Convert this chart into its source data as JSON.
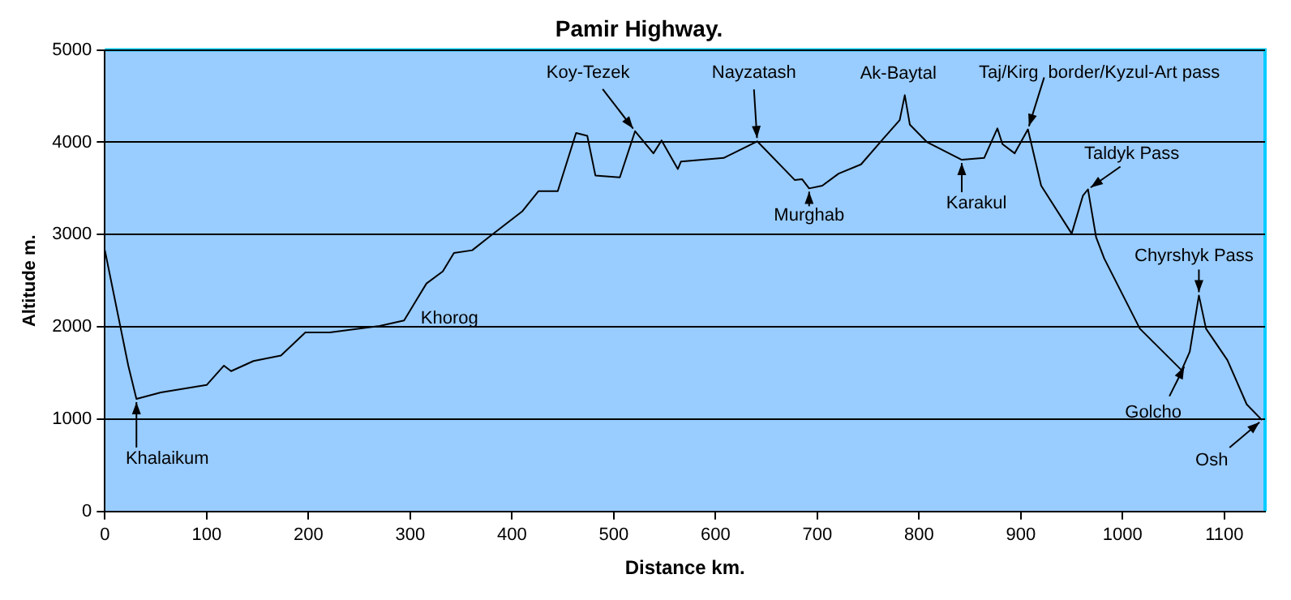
{
  "chart_data": {
    "type": "line",
    "title": "Pamir Highway.",
    "xlabel": "Distance km.",
    "ylabel": "Altitude m.",
    "x": [
      0,
      23,
      31,
      55,
      100,
      117,
      124,
      146,
      173,
      197,
      221,
      270,
      294,
      316,
      332,
      343,
      361,
      377,
      410,
      426,
      445,
      463,
      474,
      482,
      506,
      521,
      539,
      547,
      563,
      566,
      608,
      641,
      678,
      685,
      692,
      705,
      721,
      743,
      765,
      781,
      786,
      791,
      808,
      842,
      864,
      877,
      882,
      894,
      907,
      920,
      950,
      961,
      966,
      974,
      982,
      1017,
      1058,
      1066,
      1075,
      1082,
      1103,
      1122,
      1137
    ],
    "series": [
      {
        "color": "#000000",
        "values": [
          2830,
          1580,
          1220,
          1290,
          1370,
          1580,
          1520,
          1630,
          1690,
          1940,
          1940,
          2010,
          2070,
          2470,
          2600,
          2800,
          2830,
          2970,
          3250,
          3470,
          3470,
          4100,
          4070,
          3640,
          3620,
          4120,
          3880,
          4020,
          3710,
          3790,
          3830,
          4010,
          3590,
          3600,
          3500,
          3530,
          3660,
          3760,
          4040,
          4240,
          4510,
          4190,
          4000,
          3810,
          3830,
          4150,
          3980,
          3880,
          4140,
          3530,
          3010,
          3420,
          3490,
          2970,
          2740,
          1980,
          1530,
          1730,
          2340,
          1980,
          1640,
          1160,
          990
        ]
      }
    ],
    "xlim": [
      0,
      1140
    ],
    "xticks": [
      0,
      100,
      200,
      300,
      400,
      500,
      600,
      700,
      800,
      900,
      1000,
      1100
    ],
    "ylim": [
      0,
      5000
    ],
    "yticks": [
      0,
      1000,
      2000,
      3000,
      4000,
      5000
    ],
    "grid": "y",
    "legend": false,
    "marker": "none",
    "line_style": "solid",
    "annotations": [
      {
        "text": "Khalaikum",
        "x": 31,
        "y": 1220
      },
      {
        "text": "Khorog",
        "x": 294,
        "y": 2070
      },
      {
        "text": "Koy-Tezek",
        "x": 521,
        "y": 4120
      },
      {
        "text": "Nayzatash",
        "x": 641,
        "y": 4010
      },
      {
        "text": "Ak-Baytal",
        "x": 786,
        "y": 4510
      },
      {
        "text": "Taj/Kirg  border/Kyzul-Art pass",
        "x": 907,
        "y": 4140
      },
      {
        "text": "Karakul",
        "x": 842,
        "y": 3810
      },
      {
        "text": "Murghab",
        "x": 692,
        "y": 3500
      },
      {
        "text": "Taldyk Pass",
        "x": 966,
        "y": 3490
      },
      {
        "text": "Chyrshyk Pass",
        "x": 1075,
        "y": 2340
      },
      {
        "text": "Golcho",
        "x": 1062,
        "y": 1600
      },
      {
        "text": "Osh",
        "x": 1137,
        "y": 990
      }
    ]
  }
}
